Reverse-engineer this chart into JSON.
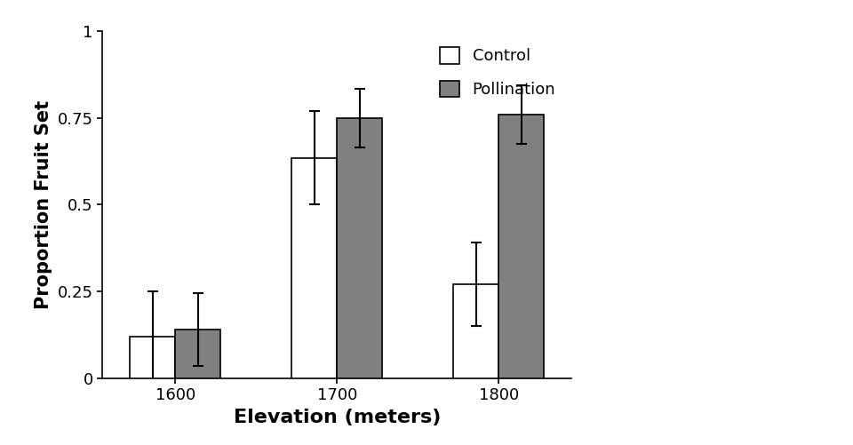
{
  "categories": [
    "1600",
    "1700",
    "1800"
  ],
  "control_values": [
    0.12,
    0.635,
    0.27
  ],
  "pollination_values": [
    0.14,
    0.75,
    0.76
  ],
  "control_errors": [
    0.13,
    0.135,
    0.12
  ],
  "pollination_errors": [
    0.105,
    0.085,
    0.085
  ],
  "control_color": "#ffffff",
  "pollination_color": "#808080",
  "bar_edge_color": "#000000",
  "ylabel": "Proportion Fruit Set",
  "xlabel": "Elevation (meters)",
  "ylim": [
    0,
    1
  ],
  "yticks": [
    0,
    0.25,
    0.5,
    0.75,
    1
  ],
  "ytick_labels": [
    "0",
    "0.25",
    "0.5",
    "0.75",
    "1"
  ],
  "legend_labels": [
    "Control",
    "Pollination"
  ],
  "bar_width": 0.28,
  "error_capsize": 4,
  "error_linewidth": 1.5,
  "ylabel_fontsize": 15,
  "xlabel_fontsize": 16,
  "tick_fontsize": 13,
  "legend_fontsize": 13,
  "ylabel_fontweight": "bold",
  "xlabel_fontweight": "bold"
}
